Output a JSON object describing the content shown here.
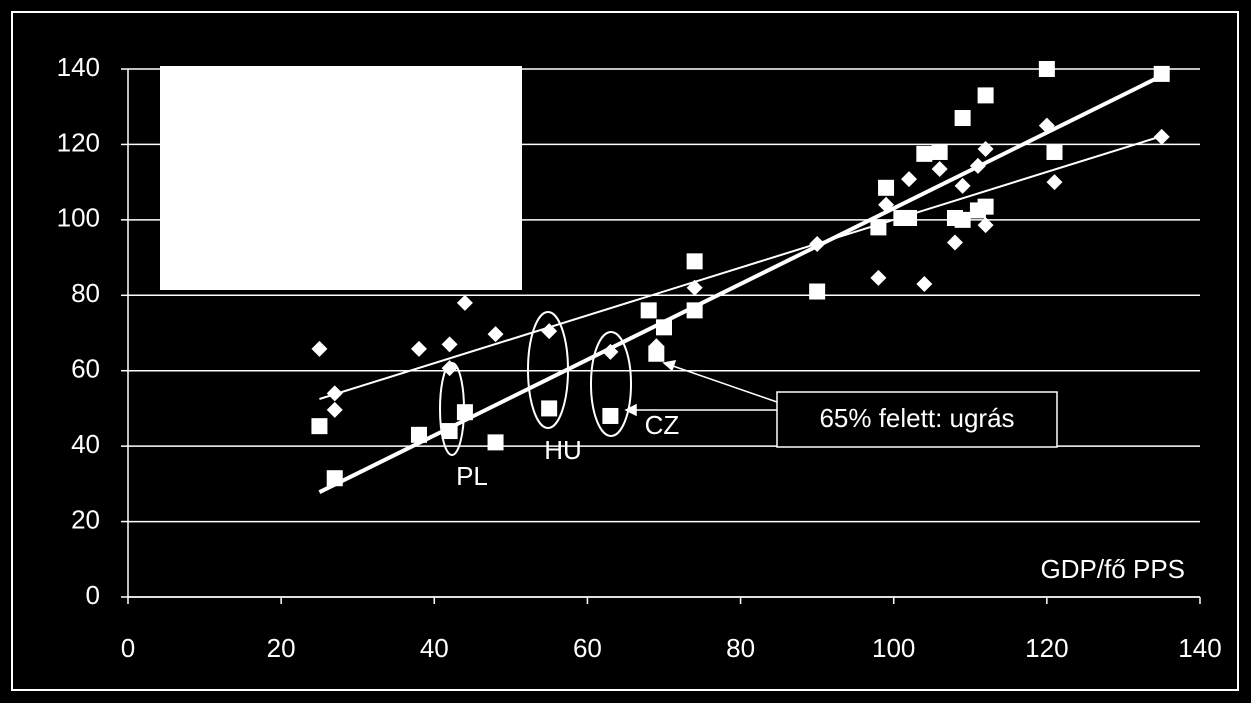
{
  "chart_data": {
    "type": "scatter",
    "x_label": "GDP/fő PPS",
    "xlim": [
      0,
      140
    ],
    "xticks": [
      0,
      20,
      40,
      60,
      80,
      100,
      120,
      140
    ],
    "ylim": [
      0,
      140
    ],
    "yticks": [
      0,
      20,
      40,
      60,
      80,
      100,
      120,
      140
    ],
    "grid": true,
    "series": [
      {
        "marker": "square",
        "color": "#ffffff",
        "x": [
          25,
          27,
          38,
          42,
          44,
          48,
          55,
          63,
          68,
          70,
          69,
          74,
          74,
          90,
          98,
          99,
          101,
          102,
          104,
          106,
          108,
          109,
          109,
          111,
          112,
          112,
          120,
          121,
          135
        ],
        "values": [
          45.3,
          31.5,
          43,
          44,
          49,
          41,
          50,
          48,
          76,
          71.5,
          64.5,
          89,
          76,
          81,
          98,
          108.5,
          100.5,
          100.5,
          117.5,
          118,
          100.5,
          100,
          127,
          102.5,
          103.5,
          133,
          140,
          118,
          138.7
        ]
      },
      {
        "marker": "diamond",
        "color": "#ffffff",
        "x": [
          25,
          27,
          27,
          38,
          42,
          42,
          44,
          48,
          55,
          63,
          69,
          74,
          90,
          98,
          99,
          102,
          104,
          106,
          108,
          109,
          111,
          112,
          112,
          120,
          121,
          135
        ],
        "values": [
          65.8,
          54,
          49.6,
          65.8,
          67,
          60.7,
          78,
          69.7,
          70.5,
          65,
          66.5,
          82,
          93.6,
          84.6,
          104,
          110.8,
          83,
          113.5,
          94,
          109,
          114.3,
          118.8,
          98.6,
          125,
          110,
          122
        ]
      }
    ],
    "trendlines": [
      {
        "x": [
          25,
          135
        ],
        "values": [
          27.8,
          138.2
        ],
        "width": 4
      },
      {
        "x": [
          25,
          135
        ],
        "values": [
          52.5,
          122.2
        ],
        "width": 2
      }
    ],
    "annotations": [
      "PL",
      "HU",
      "CZ",
      "65% felett: ugrás"
    ]
  }
}
